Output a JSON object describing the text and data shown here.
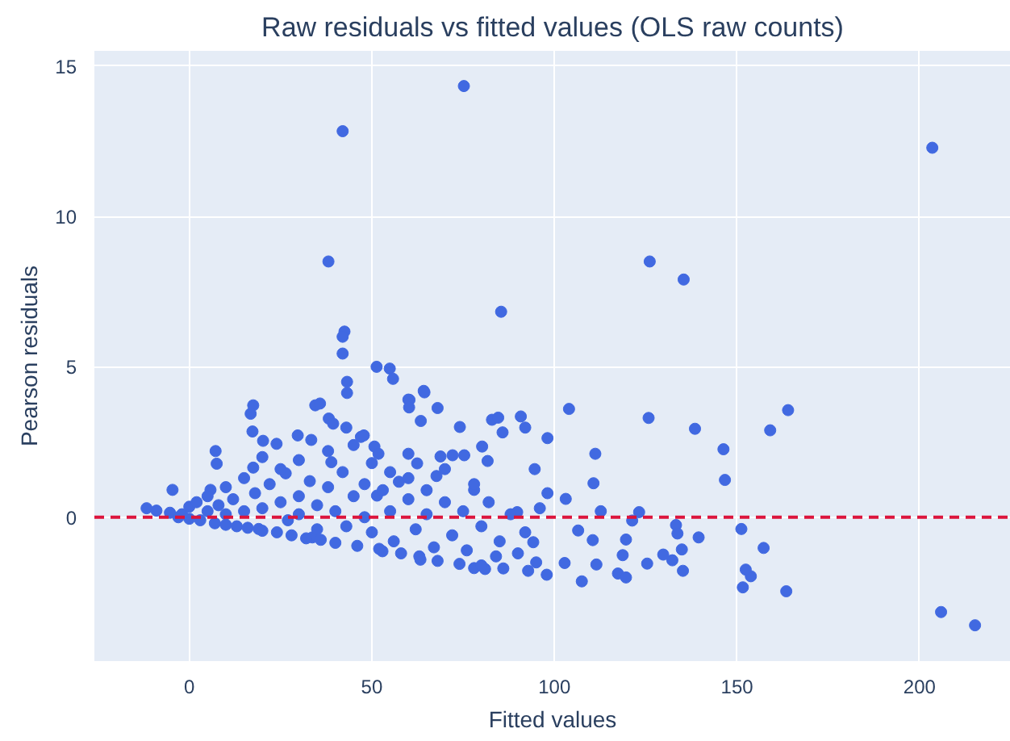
{
  "chart_data": {
    "type": "scatter",
    "title": "Raw residuals vs fitted values (OLS raw counts)",
    "xlabel": "Fitted values",
    "ylabel": "Pearson residuals",
    "xlim": [
      -26,
      225
    ],
    "ylim": [
      -4.78,
      15.5
    ],
    "xticks": [
      0,
      50,
      100,
      150,
      200
    ],
    "yticks": [
      0,
      5,
      10,
      15
    ],
    "grid": true,
    "marker": "circle",
    "ref_lines": [
      {
        "axis": "y",
        "value": 0,
        "color": "#dc143c",
        "line_style": "dashed"
      }
    ],
    "series": [
      {
        "color": "#4169e1",
        "x": [
          75.2,
          42.0,
          203.5,
          38.1,
          126.1,
          135.4,
          85.4,
          42.5,
          42.0,
          42.0,
          51.3,
          54.9,
          55.8,
          43.2,
          43.2,
          60.3,
          64.2,
          104,
          125.8,
          138.5,
          164,
          159.1,
          146.3,
          146.7,
          98.1,
          111.2,
          110.7,
          112.7,
          123.2,
          151.2,
          157.3,
          163.5,
          151.6,
          153.8,
          152.4,
          205.9,
          215.2,
          107.5,
          117.4,
          119.6,
          125.4,
          129.8,
          132.3,
          135.2,
          134.9,
          139.5,
          133.3,
          133.7,
          119.6,
          118.7,
          111.5,
          102.8,
          97.9,
          94.2,
          98.1,
          103.1,
          94.6,
          121.3,
          110.5,
          106.5,
          17.5,
          16.8,
          17.3,
          7.2,
          7.5,
          34.5,
          35.8,
          38.2,
          39.4,
          43.0,
          29.7,
          23.9,
          20.2,
          33.4,
          47.0,
          47.8,
          50.7,
          51.8,
          60.0,
          62.4,
          63.4,
          68.0,
          60.0,
          74.1,
          80.2,
          81.7,
          82.9,
          84.6,
          90.8,
          92.0,
          85.8,
          72.1,
          75.3,
          68.8,
          64.4,
          60.2,
          -4.6,
          -11.7,
          -9.0,
          -5.3,
          5.8,
          17.5,
          26.4,
          38.9,
          51.4,
          57.4,
          67.7,
          78.0,
          89.8,
          -3,
          19,
          33.7,
          52.9,
          63.3,
          78,
          81,
          92.8,
          -2,
          0,
          0,
          2,
          3,
          5,
          5,
          7,
          8,
          10,
          10,
          10,
          12,
          13,
          15,
          15,
          16,
          18,
          20,
          20,
          20,
          22,
          24,
          25,
          25,
          27,
          28,
          30,
          30,
          30,
          32,
          33,
          35,
          35,
          36,
          38,
          38,
          40,
          40,
          42,
          43,
          45,
          45,
          46,
          48,
          48,
          50,
          50,
          52,
          53,
          55,
          55,
          56,
          58,
          60,
          60,
          62,
          63,
          65,
          65,
          67,
          68,
          70,
          70,
          72,
          74,
          75,
          76,
          78,
          80,
          80,
          82,
          84,
          85,
          86,
          88,
          90,
          92,
          95,
          96
        ],
        "values": [
          14.33,
          12.83,
          12.28,
          8.5,
          8.5,
          7.9,
          6.83,
          6.17,
          6.0,
          5.44,
          5.0,
          4.94,
          4.6,
          4.5,
          4.13,
          3.9,
          4.2,
          3.6,
          3.3,
          2.94,
          3.56,
          2.89,
          2.26,
          1.24,
          2.63,
          2.11,
          1.13,
          0.2,
          0.17,
          -0.39,
          -1.02,
          -2.46,
          -2.33,
          -1.96,
          -1.74,
          -3.15,
          -3.59,
          -2.13,
          -1.87,
          -2.0,
          -1.54,
          -1.24,
          -1.43,
          -1.78,
          -1.07,
          -0.67,
          -0.26,
          -0.54,
          -0.74,
          -1.26,
          -1.57,
          -1.52,
          -1.91,
          -0.83,
          0.8,
          0.61,
          1.6,
          -0.11,
          -0.76,
          -0.44,
          3.72,
          3.44,
          2.85,
          2.2,
          1.78,
          3.72,
          3.78,
          3.28,
          3.11,
          2.98,
          2.72,
          2.44,
          2.54,
          2.57,
          2.67,
          2.72,
          2.35,
          2.11,
          2.11,
          1.79,
          3.2,
          3.63,
          3.91,
          3.0,
          2.35,
          1.87,
          3.24,
          3.31,
          3.35,
          2.98,
          2.82,
          2.06,
          2.06,
          2.02,
          4.15,
          3.65,
          0.91,
          0.3,
          0.22,
          0.15,
          0.91,
          1.65,
          1.46,
          1.83,
          0.72,
          1.18,
          1.37,
          0.91,
          0.17,
          0,
          -0.39,
          -0.67,
          -1.13,
          -1.41,
          -1.69,
          -1.72,
          -1.78,
          0.1,
          0.35,
          -0.05,
          0.5,
          -0.1,
          0.2,
          0.7,
          -0.2,
          0.4,
          1.0,
          0.1,
          -0.25,
          0.6,
          -0.3,
          1.3,
          0.2,
          -0.35,
          0.8,
          2.0,
          0.3,
          -0.45,
          1.1,
          -0.5,
          0.5,
          1.6,
          -0.1,
          -0.6,
          1.9,
          0.7,
          0.1,
          -0.7,
          1.2,
          0.4,
          -0.4,
          -0.75,
          2.2,
          1.0,
          0.2,
          -0.85,
          1.5,
          -0.3,
          2.4,
          0.7,
          -0.95,
          1.1,
          0,
          1.8,
          -0.5,
          -1.05,
          0.9,
          0.2,
          1.5,
          -0.8,
          -1.2,
          0.6,
          1.3,
          -0.4,
          -1.3,
          0.9,
          0.1,
          -1.0,
          -1.45,
          0.5,
          1.6,
          -0.6,
          -1.55,
          0.2,
          -1.1,
          1.1,
          -0.3,
          -1.6,
          0.5,
          -1.3,
          -0.8,
          -1.7,
          0.1,
          -1.2,
          -0.5,
          -1.5,
          0.3
        ]
      }
    ]
  }
}
